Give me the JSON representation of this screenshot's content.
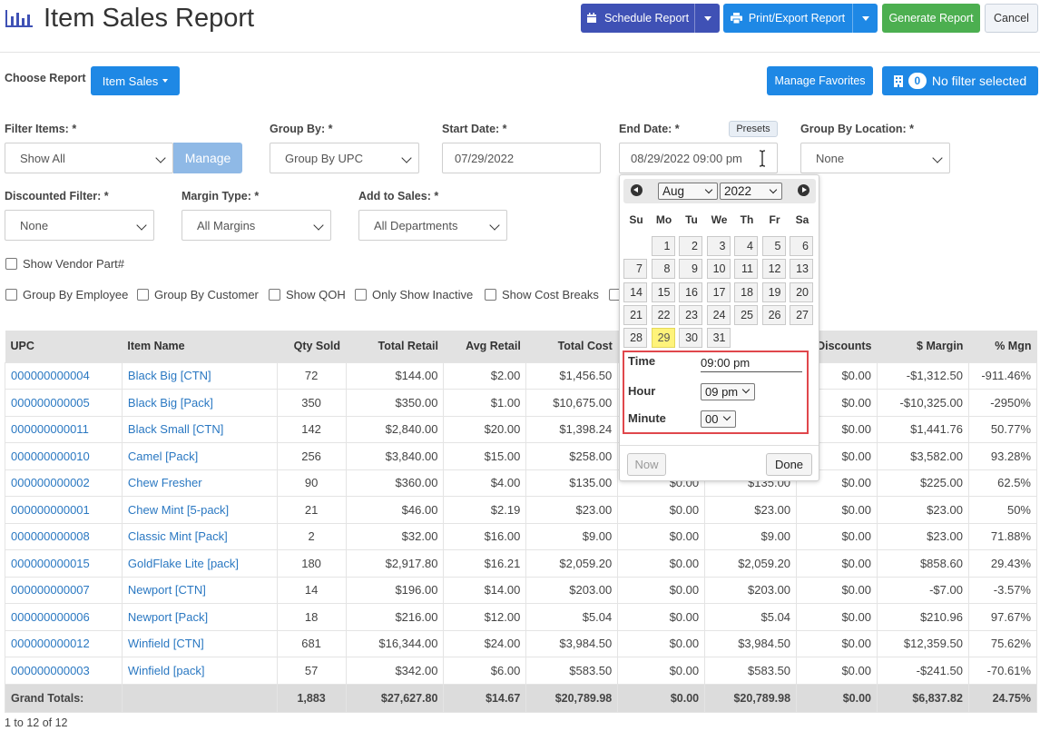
{
  "header": {
    "title": "Item Sales Report",
    "schedule_label": "Schedule Report",
    "print_label": "Print/Export Report",
    "generate_label": "Generate Report",
    "cancel_label": "Cancel"
  },
  "report_bar": {
    "choose_label": "Choose Report",
    "report_value": "Item Sales",
    "manage_favorites": "Manage Favorites",
    "filter_count": "0",
    "filter_label": "No filter selected"
  },
  "filters": {
    "filter_items_label": "Filter Items: *",
    "filter_items_value": "Show All",
    "manage_label": "Manage",
    "group_by_label": "Group By: *",
    "group_by_value": "Group By UPC",
    "start_date_label": "Start Date: *",
    "start_date_value": "07/29/2022",
    "end_date_label": "End Date: *",
    "presets_label": "Presets",
    "end_date_value": "08/29/2022 09:00 pm",
    "group_by_location_label": "Group By Location: *",
    "group_by_location_value": "None",
    "discounted_label": "Discounted Filter: *",
    "discounted_value": "None",
    "margin_type_label": "Margin Type: *",
    "margin_type_value": "All Margins",
    "add_to_sales_label": "Add to Sales: *",
    "add_to_sales_value": "All Departments"
  },
  "checkboxes": {
    "vendor_part": "Show Vendor Part#",
    "group_employee": "Group By Employee",
    "group_customer": "Group By Customer",
    "show_qoh": "Show QOH",
    "only_inactive": "Only Show Inactive",
    "cost_breaks": "Show Cost Breaks"
  },
  "calendar": {
    "month": "Aug",
    "year": "2022",
    "weekdays": [
      "Su",
      "Mo",
      "Tu",
      "We",
      "Th",
      "Fr",
      "Sa"
    ],
    "weeks": [
      [
        "",
        "1",
        "2",
        "3",
        "4",
        "5",
        "6"
      ],
      [
        "7",
        "8",
        "9",
        "10",
        "11",
        "12",
        "13"
      ],
      [
        "14",
        "15",
        "16",
        "17",
        "18",
        "19",
        "20"
      ],
      [
        "21",
        "22",
        "23",
        "24",
        "25",
        "26",
        "27"
      ],
      [
        "28",
        "29",
        "30",
        "31",
        "",
        "",
        ""
      ]
    ],
    "selected_day": "29",
    "time_label": "Time",
    "time_value": "09:00 pm",
    "hour_label": "Hour",
    "hour_value": "09 pm",
    "minute_label": "Minute",
    "minute_value": "00",
    "now_label": "Now",
    "done_label": "Done"
  },
  "table": {
    "columns": [
      "UPC",
      "Item Name",
      "Qty Sold",
      "Total Retail",
      "Avg Retail",
      "Total Cost",
      "",
      "",
      "Discounts",
      "$ Margin",
      "% Mgn"
    ],
    "rows": [
      [
        "000000000004",
        "Black Big [CTN]",
        "72",
        "$144.00",
        "$2.00",
        "$1,456.50",
        "",
        "",
        "$0.00",
        "-$1,312.50",
        "-911.46%"
      ],
      [
        "000000000005",
        "Black Big [Pack]",
        "350",
        "$350.00",
        "$1.00",
        "$10,675.00",
        "",
        "",
        "$0.00",
        "-$10,325.00",
        "-2950%"
      ],
      [
        "000000000011",
        "Black Small [CTN]",
        "142",
        "$2,840.00",
        "$20.00",
        "$1,398.24",
        "",
        "",
        "$0.00",
        "$1,441.76",
        "50.77%"
      ],
      [
        "000000000010",
        "Camel [Pack]",
        "256",
        "$3,840.00",
        "$15.00",
        "$258.00",
        "",
        "",
        "$0.00",
        "$3,582.00",
        "93.28%"
      ],
      [
        "000000000002",
        "Chew Fresher",
        "90",
        "$360.00",
        "$4.00",
        "$135.00",
        "$0.00",
        "$135.00",
        "$0.00",
        "$225.00",
        "62.5%"
      ],
      [
        "000000000001",
        "Chew Mint [5-pack]",
        "21",
        "$46.00",
        "$2.19",
        "$23.00",
        "$0.00",
        "$23.00",
        "$0.00",
        "$23.00",
        "50%"
      ],
      [
        "000000000008",
        "Classic Mint [Pack]",
        "2",
        "$32.00",
        "$16.00",
        "$9.00",
        "$0.00",
        "$9.00",
        "$0.00",
        "$23.00",
        "71.88%"
      ],
      [
        "000000000015",
        "GoldFlake Lite [pack]",
        "180",
        "$2,917.80",
        "$16.21",
        "$2,059.20",
        "$0.00",
        "$2,059.20",
        "$0.00",
        "$858.60",
        "29.43%"
      ],
      [
        "000000000007",
        "Newport [CTN]",
        "14",
        "$196.00",
        "$14.00",
        "$203.00",
        "$0.00",
        "$203.00",
        "$0.00",
        "-$7.00",
        "-3.57%"
      ],
      [
        "000000000006",
        "Newport [Pack]",
        "18",
        "$216.00",
        "$12.00",
        "$5.04",
        "$0.00",
        "$5.04",
        "$0.00",
        "$210.96",
        "97.67%"
      ],
      [
        "000000000012",
        "Winfield [CTN]",
        "681",
        "$16,344.00",
        "$24.00",
        "$3,984.50",
        "$0.00",
        "$3,984.50",
        "$0.00",
        "$12,359.50",
        "75.62%"
      ],
      [
        "000000000003",
        "Winfield [pack]",
        "57",
        "$342.00",
        "$6.00",
        "$583.50",
        "$0.00",
        "$583.50",
        "$0.00",
        "-$241.50",
        "-70.61%"
      ]
    ],
    "totals": [
      "Grand Totals:",
      "",
      "1,883",
      "$27,627.80",
      "$14.67",
      "$20,789.98",
      "$0.00",
      "$20,789.98",
      "$0.00",
      "$6,837.82",
      "24.75%"
    ]
  },
  "footer": {
    "range": "1 to 12 of 12"
  },
  "colors": {
    "indigo": "#3f51b5",
    "blue": "#1e88e5",
    "green": "#4caf50",
    "link": "#2a78c2",
    "highlight": "#fff37a",
    "outline_red": "#e0474c"
  }
}
